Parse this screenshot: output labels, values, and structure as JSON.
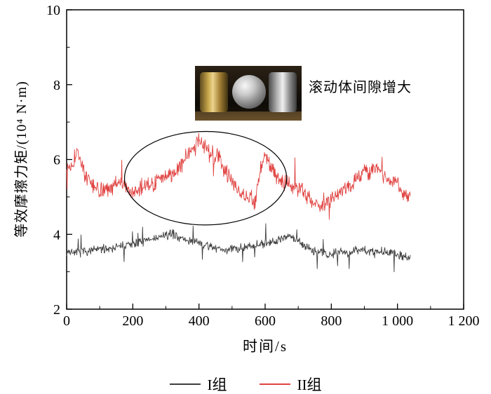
{
  "figure": {
    "background": "#ffffff",
    "annotation_text": "滚动体间隙增大",
    "x_axis": {
      "label": "时间/s",
      "min": 0,
      "max": 1200,
      "minor_step": 100,
      "major_ticks": [
        0,
        200,
        400,
        600,
        800,
        1000,
        1200
      ],
      "tick_labels": [
        "0",
        "200",
        "400",
        "600",
        "800",
        "1 000",
        "1 200"
      ]
    },
    "y_axis": {
      "label": "等效摩擦力矩/(10⁴ N·m)",
      "min": 2,
      "max": 10,
      "minor_step": 1,
      "major_ticks": [
        2,
        4,
        6,
        8,
        10
      ],
      "tick_labels": [
        "2",
        "4",
        "6",
        "8",
        "10"
      ]
    },
    "legend": [
      {
        "label": "I组",
        "color": "#3f3f3f"
      },
      {
        "label": "II组",
        "color": "#e04442"
      }
    ]
  },
  "chart_data": {
    "type": "line",
    "title": "",
    "xlabel": "时间/s",
    "ylabel": "等效摩擦力矩/(10⁴ N·m)",
    "xlim": [
      0,
      1200
    ],
    "ylim": [
      2,
      10
    ],
    "grid": false,
    "legend_position": "bottom",
    "annotations": {
      "text": "滚动体间隙增大",
      "ellipse": {
        "x_center": 420,
        "y_center": 5.5,
        "rx": 245,
        "ry": 1.25
      }
    },
    "series": [
      {
        "name": "I组",
        "color": "#3f3f3f",
        "noise_amp": 0.07,
        "seed": 7,
        "x_end": 1040,
        "keypoints": [
          [
            0,
            3.55
          ],
          [
            30,
            3.5
          ],
          [
            60,
            3.55
          ],
          [
            100,
            3.6
          ],
          [
            140,
            3.65
          ],
          [
            180,
            3.7
          ],
          [
            220,
            3.78
          ],
          [
            250,
            3.85
          ],
          [
            280,
            3.92
          ],
          [
            300,
            3.97
          ],
          [
            320,
            4.02
          ],
          [
            340,
            3.92
          ],
          [
            360,
            3.85
          ],
          [
            380,
            3.8
          ],
          [
            400,
            3.76
          ],
          [
            420,
            3.7
          ],
          [
            440,
            3.66
          ],
          [
            470,
            3.6
          ],
          [
            500,
            3.6
          ],
          [
            530,
            3.65
          ],
          [
            560,
            3.7
          ],
          [
            590,
            3.75
          ],
          [
            620,
            3.8
          ],
          [
            650,
            3.9
          ],
          [
            670,
            3.96
          ],
          [
            690,
            3.86
          ],
          [
            710,
            3.75
          ],
          [
            730,
            3.65
          ],
          [
            750,
            3.55
          ],
          [
            770,
            3.5
          ],
          [
            790,
            3.45
          ],
          [
            810,
            3.5
          ],
          [
            830,
            3.56
          ],
          [
            850,
            3.5
          ],
          [
            870,
            3.56
          ],
          [
            890,
            3.6
          ],
          [
            910,
            3.56
          ],
          [
            930,
            3.5
          ],
          [
            950,
            3.56
          ],
          [
            970,
            3.5
          ],
          [
            990,
            3.46
          ],
          [
            1010,
            3.45
          ],
          [
            1040,
            3.4
          ]
        ]
      },
      {
        "name": "II组",
        "color": "#e04442",
        "noise_amp": 0.13,
        "seed": 13,
        "x_end": 1040,
        "keypoints": [
          [
            0,
            5.75
          ],
          [
            15,
            5.9
          ],
          [
            35,
            6.2
          ],
          [
            55,
            5.6
          ],
          [
            80,
            5.25
          ],
          [
            110,
            5.15
          ],
          [
            140,
            5.3
          ],
          [
            160,
            5.45
          ],
          [
            180,
            5.2
          ],
          [
            200,
            5.1
          ],
          [
            230,
            5.3
          ],
          [
            260,
            5.35
          ],
          [
            290,
            5.5
          ],
          [
            320,
            5.6
          ],
          [
            350,
            5.9
          ],
          [
            380,
            6.3
          ],
          [
            400,
            6.55
          ],
          [
            420,
            6.3
          ],
          [
            440,
            6.0
          ],
          [
            455,
            6.2
          ],
          [
            470,
            5.85
          ],
          [
            490,
            5.55
          ],
          [
            510,
            5.3
          ],
          [
            530,
            5.1
          ],
          [
            550,
            5.0
          ],
          [
            570,
            4.85
          ],
          [
            590,
            5.9
          ],
          [
            600,
            6.1
          ],
          [
            615,
            5.85
          ],
          [
            630,
            5.6
          ],
          [
            650,
            5.4
          ],
          [
            680,
            5.3
          ],
          [
            700,
            5.38
          ],
          [
            720,
            5.1
          ],
          [
            740,
            4.95
          ],
          [
            760,
            4.7
          ],
          [
            780,
            4.78
          ],
          [
            800,
            4.95
          ],
          [
            820,
            5.05
          ],
          [
            840,
            5.2
          ],
          [
            860,
            5.35
          ],
          [
            880,
            5.5
          ],
          [
            900,
            5.72
          ],
          [
            920,
            5.6
          ],
          [
            940,
            5.82
          ],
          [
            960,
            5.55
          ],
          [
            980,
            5.42
          ],
          [
            1000,
            5.35
          ],
          [
            1020,
            5.1
          ],
          [
            1040,
            4.95
          ]
        ]
      }
    ]
  }
}
